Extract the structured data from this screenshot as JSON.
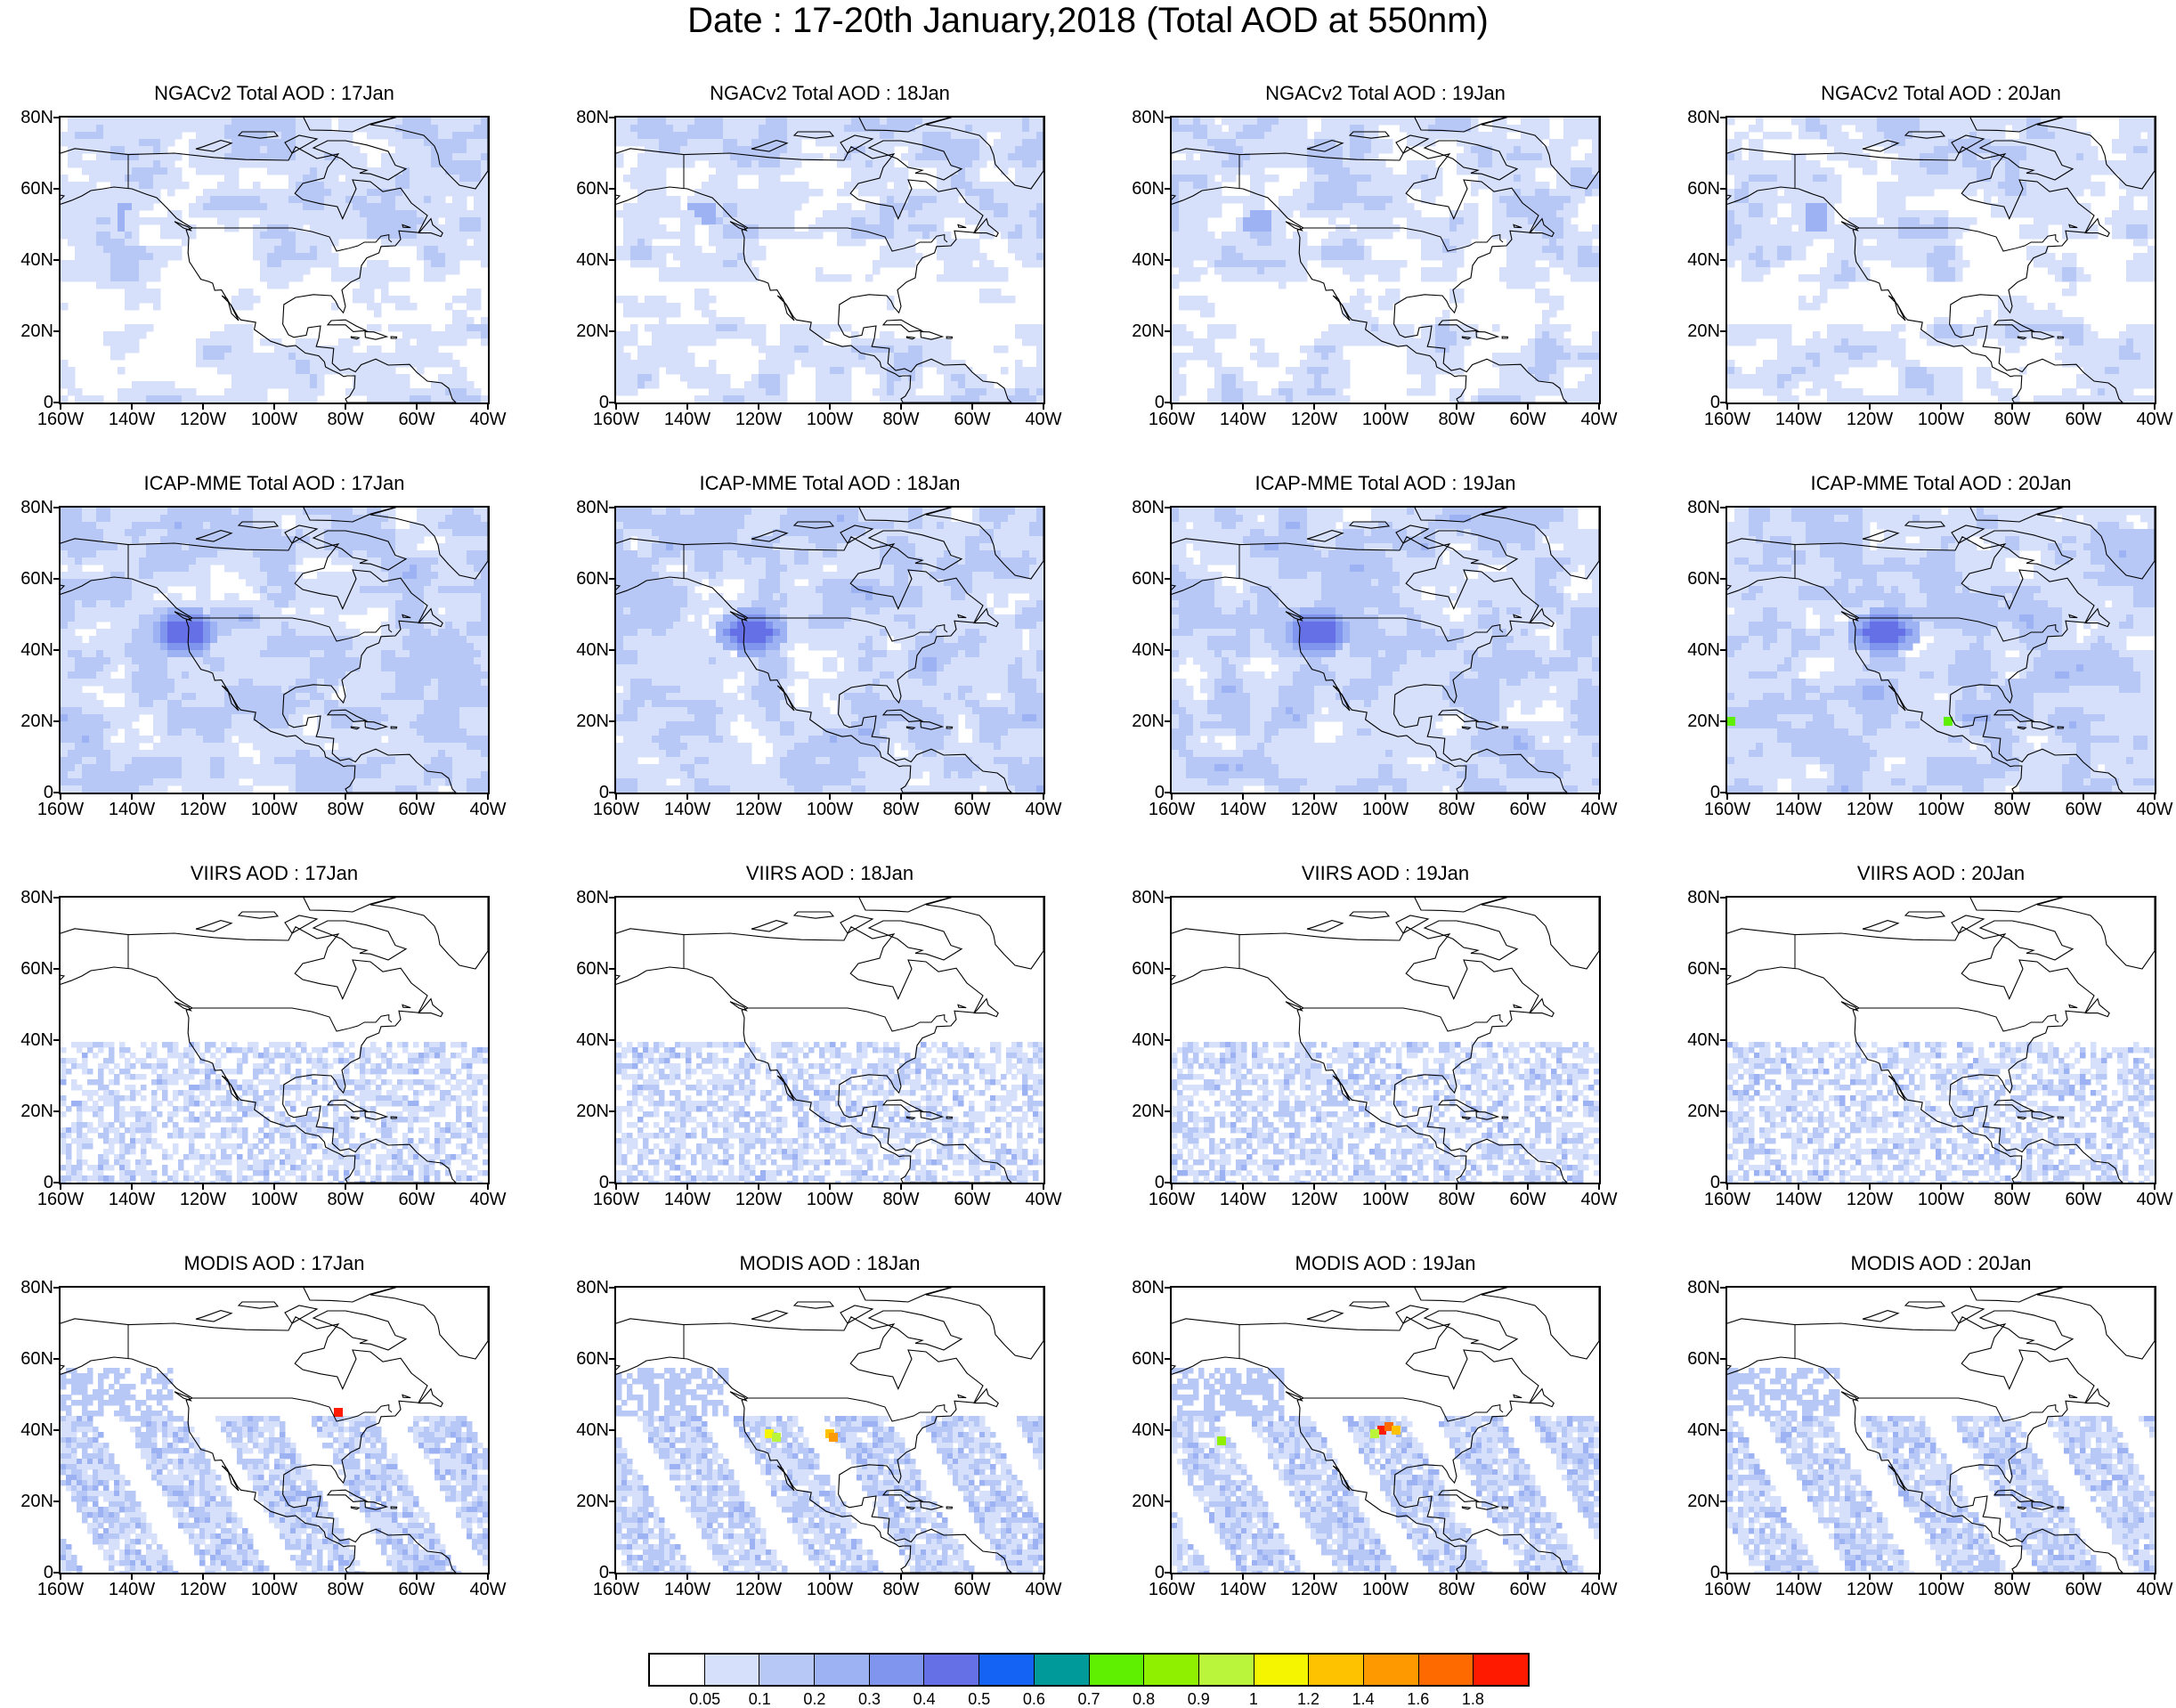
{
  "figure": {
    "title": "Date : 17-20th January,2018 (Total AOD at 550nm)"
  },
  "map_axes": {
    "y_ticks": [
      "80N",
      "60N",
      "40N",
      "20N",
      "0"
    ],
    "x_ticks": [
      "160W",
      "140W",
      "120W",
      "100W",
      "80W",
      "60W",
      "40W"
    ],
    "lat_range": [
      0,
      80
    ],
    "lon_range": [
      -160,
      -40
    ]
  },
  "panels": [
    {
      "title": "NGACv2 Total AOD : 17Jan",
      "product": "NGACv2",
      "day": "17Jan"
    },
    {
      "title": "NGACv2 Total AOD : 18Jan",
      "product": "NGACv2",
      "day": "18Jan"
    },
    {
      "title": "NGACv2 Total AOD : 19Jan",
      "product": "NGACv2",
      "day": "19Jan"
    },
    {
      "title": "NGACv2 Total AOD : 20Jan",
      "product": "NGACv2",
      "day": "20Jan"
    },
    {
      "title": "ICAP-MME Total AOD : 17Jan",
      "product": "ICAP-MME",
      "day": "17Jan"
    },
    {
      "title": "ICAP-MME Total AOD : 18Jan",
      "product": "ICAP-MME",
      "day": "18Jan"
    },
    {
      "title": "ICAP-MME Total AOD : 19Jan",
      "product": "ICAP-MME",
      "day": "19Jan"
    },
    {
      "title": "ICAP-MME Total AOD : 20Jan",
      "product": "ICAP-MME",
      "day": "20Jan"
    },
    {
      "title": "VIIRS AOD : 17Jan",
      "product": "VIIRS",
      "day": "17Jan"
    },
    {
      "title": "VIIRS AOD : 18Jan",
      "product": "VIIRS",
      "day": "18Jan"
    },
    {
      "title": "VIIRS AOD : 19Jan",
      "product": "VIIRS",
      "day": "19Jan"
    },
    {
      "title": "VIIRS AOD : 20Jan",
      "product": "VIIRS",
      "day": "20Jan"
    },
    {
      "title": "MODIS AOD : 17Jan",
      "product": "MODIS",
      "day": "17Jan"
    },
    {
      "title": "MODIS AOD : 18Jan",
      "product": "MODIS",
      "day": "18Jan"
    },
    {
      "title": "MODIS AOD : 19Jan",
      "product": "MODIS",
      "day": "19Jan"
    },
    {
      "title": "MODIS AOD : 20Jan",
      "product": "MODIS",
      "day": "20Jan"
    }
  ],
  "colorbar": {
    "levels": [
      "0.05",
      "0.1",
      "0.2",
      "0.3",
      "0.4",
      "0.5",
      "0.6",
      "0.7",
      "0.8",
      "0.9",
      "1",
      "1.2",
      "1.4",
      "1.6",
      "1.8"
    ],
    "colors": [
      "#ffffff",
      "#d6e0fa",
      "#b8c8f6",
      "#9cb2f2",
      "#8095ee",
      "#6670e6",
      "#1463f5",
      "#009a9a",
      "#5ef000",
      "#8ff000",
      "#baf53c",
      "#f5f500",
      "#ffc200",
      "#ff9900",
      "#ff6a00",
      "#ff1a00"
    ]
  }
}
